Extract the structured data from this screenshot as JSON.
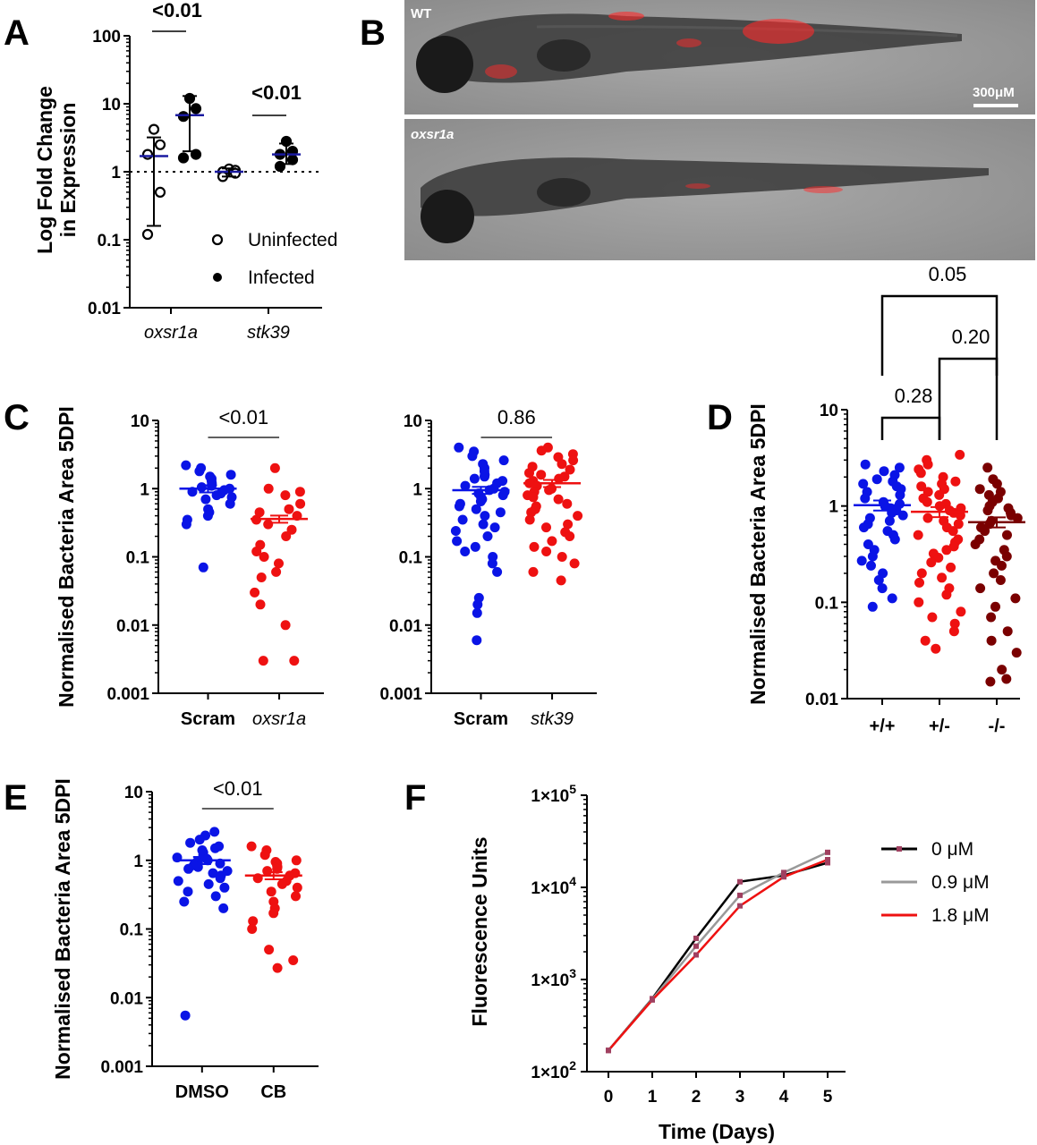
{
  "panels": {
    "A": "A",
    "B": "B",
    "C": "C",
    "D": "D",
    "E": "E",
    "F": "F"
  },
  "images": {
    "top_label": "WT",
    "bottom_label": "oxsr1a",
    "scale_label": "300μM"
  },
  "chart_data": [
    {
      "id": "A",
      "type": "scatter",
      "ylabel_lines": [
        "Log Fold Change",
        "in Expression"
      ],
      "yscale": "log",
      "ylim": [
        0.01,
        100
      ],
      "yticks": [
        "0.01",
        "0.1",
        "1",
        "10",
        "100"
      ],
      "categories": [
        "oxsr1a",
        "stk39"
      ],
      "reference_line": 1,
      "legend": {
        "placement": "bottom-right",
        "entries": [
          "Uninfected",
          "Infected"
        ]
      },
      "series": [
        {
          "name": "Uninfected",
          "group": "oxsr1a",
          "values": [
            4.2,
            2.5,
            1.8,
            0.5,
            0.12
          ],
          "mean": 1.7,
          "err": [
            0.16,
            3.2
          ]
        },
        {
          "name": "Infected",
          "group": "oxsr1a",
          "values": [
            12,
            8.5,
            6.5,
            1.8,
            1.6
          ],
          "mean": 6.8,
          "err": [
            2.0,
            13
          ]
        },
        {
          "name": "Uninfected",
          "group": "stk39",
          "values": [
            1.1,
            1.05,
            1.0,
            0.95,
            0.85
          ],
          "mean": 1.0,
          "err": [
            0.85,
            1.12
          ]
        },
        {
          "name": "Infected",
          "group": "stk39",
          "values": [
            2.8,
            2.0,
            1.8,
            1.5,
            1.2
          ],
          "mean": 1.8,
          "err": [
            1.3,
            2.6
          ]
        }
      ],
      "annotations": [
        "<0.01",
        "<0.01"
      ]
    },
    {
      "id": "C1",
      "type": "scatter",
      "ylabel": "Normalised Bacteria Area 5DPI",
      "yscale": "log",
      "ylim": [
        0.001,
        10
      ],
      "yticks": [
        "0.001",
        "0.01",
        "0.1",
        "1",
        "10"
      ],
      "categories": [
        "Scram",
        "oxsr1a"
      ],
      "groups": [
        {
          "category": "Scram",
          "color": "#0a14e6",
          "mean": 1.0,
          "values": [
            2.2,
            2.0,
            1.8,
            1.6,
            1.5,
            1.4,
            1.3,
            1.2,
            1.1,
            1.05,
            1.0,
            0.95,
            0.9,
            0.85,
            0.8,
            0.75,
            0.7,
            0.6,
            0.5,
            0.45,
            0.4,
            0.35,
            0.3,
            0.07
          ]
        },
        {
          "category": "oxsr1a",
          "color": "#ee1111",
          "mean": 0.36,
          "values": [
            2.0,
            1.0,
            0.9,
            0.8,
            0.6,
            0.5,
            0.45,
            0.4,
            0.35,
            0.3,
            0.25,
            0.2,
            0.15,
            0.12,
            0.1,
            0.08,
            0.06,
            0.05,
            0.03,
            0.02,
            0.01,
            0.003,
            0.003
          ]
        }
      ],
      "annotation": "<0.01"
    },
    {
      "id": "C2",
      "type": "scatter",
      "yscale": "log",
      "ylim": [
        0.001,
        10
      ],
      "yticks": [
        "0.001",
        "0.01",
        "0.1",
        "1",
        "10"
      ],
      "categories": [
        "Scram",
        "stk39"
      ],
      "groups": [
        {
          "category": "Scram",
          "color": "#0a14e6",
          "mean": 0.95,
          "values": [
            4.0,
            3.5,
            3.0,
            2.6,
            2.3,
            2.0,
            1.8,
            1.6,
            1.5,
            1.4,
            1.3,
            1.2,
            1.1,
            1.0,
            0.95,
            0.9,
            0.85,
            0.8,
            0.75,
            0.7,
            0.65,
            0.6,
            0.55,
            0.5,
            0.45,
            0.4,
            0.35,
            0.3,
            0.27,
            0.24,
            0.2,
            0.17,
            0.14,
            0.12,
            0.1,
            0.08,
            0.06,
            0.025,
            0.02,
            0.015,
            0.006
          ]
        },
        {
          "category": "stk39",
          "color": "#ee1111",
          "mean": 1.2,
          "values": [
            4.0,
            3.6,
            3.2,
            2.9,
            2.6,
            2.3,
            2.1,
            1.9,
            1.7,
            1.6,
            1.5,
            1.4,
            1.3,
            1.2,
            1.1,
            1.0,
            0.95,
            0.9,
            0.8,
            0.75,
            0.7,
            0.6,
            0.55,
            0.5,
            0.45,
            0.4,
            0.35,
            0.3,
            0.27,
            0.23,
            0.2,
            0.17,
            0.14,
            0.12,
            0.1,
            0.08,
            0.06,
            0.045
          ]
        }
      ],
      "annotation": "0.86"
    },
    {
      "id": "D",
      "type": "scatter",
      "ylabel": "Normalised Bacteria Area 5DPI",
      "yscale": "log",
      "ylim": [
        0.01,
        10
      ],
      "yticks": [
        "0.01",
        "0.1",
        "1",
        "10"
      ],
      "categories": [
        "+/+",
        "+/-",
        "-/-"
      ],
      "groups": [
        {
          "category": "+/+",
          "color": "#0a14e6",
          "mean": 1.02,
          "values": [
            2.7,
            2.5,
            2.3,
            2.1,
            1.9,
            1.8,
            1.7,
            1.6,
            1.5,
            1.4,
            1.3,
            1.2,
            1.1,
            1.05,
            1.0,
            0.95,
            0.9,
            0.85,
            0.8,
            0.75,
            0.7,
            0.65,
            0.6,
            0.55,
            0.5,
            0.45,
            0.4,
            0.35,
            0.3,
            0.27,
            0.24,
            0.2,
            0.17,
            0.14,
            0.11,
            0.09
          ]
        },
        {
          "category": "+/-",
          "color": "#ee1111",
          "mean": 0.87,
          "values": [
            3.4,
            3.0,
            2.7,
            2.4,
            2.2,
            2.0,
            1.8,
            1.7,
            1.6,
            1.5,
            1.4,
            1.3,
            1.2,
            1.1,
            1.05,
            1.0,
            0.95,
            0.9,
            0.85,
            0.8,
            0.75,
            0.7,
            0.65,
            0.6,
            0.55,
            0.5,
            0.45,
            0.42,
            0.38,
            0.35,
            0.32,
            0.29,
            0.26,
            0.23,
            0.2,
            0.18,
            0.16,
            0.14,
            0.12,
            0.1,
            0.08,
            0.07,
            0.06,
            0.05,
            0.04,
            0.033
          ]
        },
        {
          "category": "-/-",
          "color": "#7a0000",
          "mean": 0.68,
          "values": [
            2.5,
            1.9,
            1.7,
            1.5,
            1.4,
            1.3,
            1.2,
            1.1,
            1.0,
            0.95,
            0.9,
            0.85,
            0.8,
            0.75,
            0.7,
            0.65,
            0.6,
            0.55,
            0.5,
            0.45,
            0.4,
            0.35,
            0.3,
            0.27,
            0.24,
            0.2,
            0.17,
            0.14,
            0.11,
            0.09,
            0.07,
            0.05,
            0.04,
            0.03,
            0.02,
            0.016,
            0.015
          ]
        }
      ],
      "comparisons": [
        {
          "from": "+/+",
          "to": "-/-",
          "label": "0.05"
        },
        {
          "from": "+/-",
          "to": "-/-",
          "label": "0.20"
        },
        {
          "from": "+/+",
          "to": "+/-",
          "label": "0.28"
        }
      ]
    },
    {
      "id": "E",
      "type": "scatter",
      "ylabel": "Normalised Bacteria Area 5DPI",
      "yscale": "log",
      "ylim": [
        0.001,
        10
      ],
      "yticks": [
        "0.001",
        "0.01",
        "0.1",
        "1",
        "10"
      ],
      "categories": [
        "DMSO",
        "CB"
      ],
      "groups": [
        {
          "category": "DMSO",
          "color": "#0a14e6",
          "mean": 1.0,
          "values": [
            2.6,
            2.3,
            2.0,
            1.8,
            1.6,
            1.5,
            1.4,
            1.3,
            1.2,
            1.1,
            1.05,
            1.0,
            0.95,
            0.9,
            0.85,
            0.8,
            0.75,
            0.7,
            0.65,
            0.6,
            0.55,
            0.5,
            0.45,
            0.4,
            0.35,
            0.3,
            0.25,
            0.2,
            0.0055
          ]
        },
        {
          "category": "CB",
          "color": "#ee1111",
          "mean": 0.6,
          "values": [
            1.6,
            1.4,
            1.2,
            1.0,
            0.95,
            0.9,
            0.85,
            0.8,
            0.75,
            0.7,
            0.65,
            0.6,
            0.55,
            0.5,
            0.45,
            0.4,
            0.35,
            0.3,
            0.25,
            0.2,
            0.17,
            0.13,
            0.1,
            0.05,
            0.035,
            0.027
          ]
        }
      ],
      "annotation": "<0.01"
    },
    {
      "id": "F",
      "type": "line",
      "xlabel": "Time (Days)",
      "ylabel": "Fluorescence Units",
      "yscale": "log",
      "ylim": [
        100,
        100000
      ],
      "yticks": [
        {
          "base": "1×10",
          "exp": "2"
        },
        {
          "base": "1×10",
          "exp": "3"
        },
        {
          "base": "1×10",
          "exp": "4"
        },
        {
          "base": "1×10",
          "exp": "5"
        }
      ],
      "x": [
        0,
        1,
        2,
        3,
        4,
        5
      ],
      "series": [
        {
          "name": "0 μM",
          "color": "#000000",
          "values": [
            170,
            620,
            2800,
            11500,
            13500,
            18500
          ]
        },
        {
          "name": "0.9 μM",
          "color": "#999999",
          "values": [
            170,
            610,
            2300,
            8200,
            14500,
            24000
          ]
        },
        {
          "name": "1.8 μM",
          "color": "#ee1111",
          "values": [
            170,
            600,
            1850,
            6300,
            13000,
            20000
          ]
        }
      ],
      "legend": {
        "placement": "right"
      }
    }
  ]
}
